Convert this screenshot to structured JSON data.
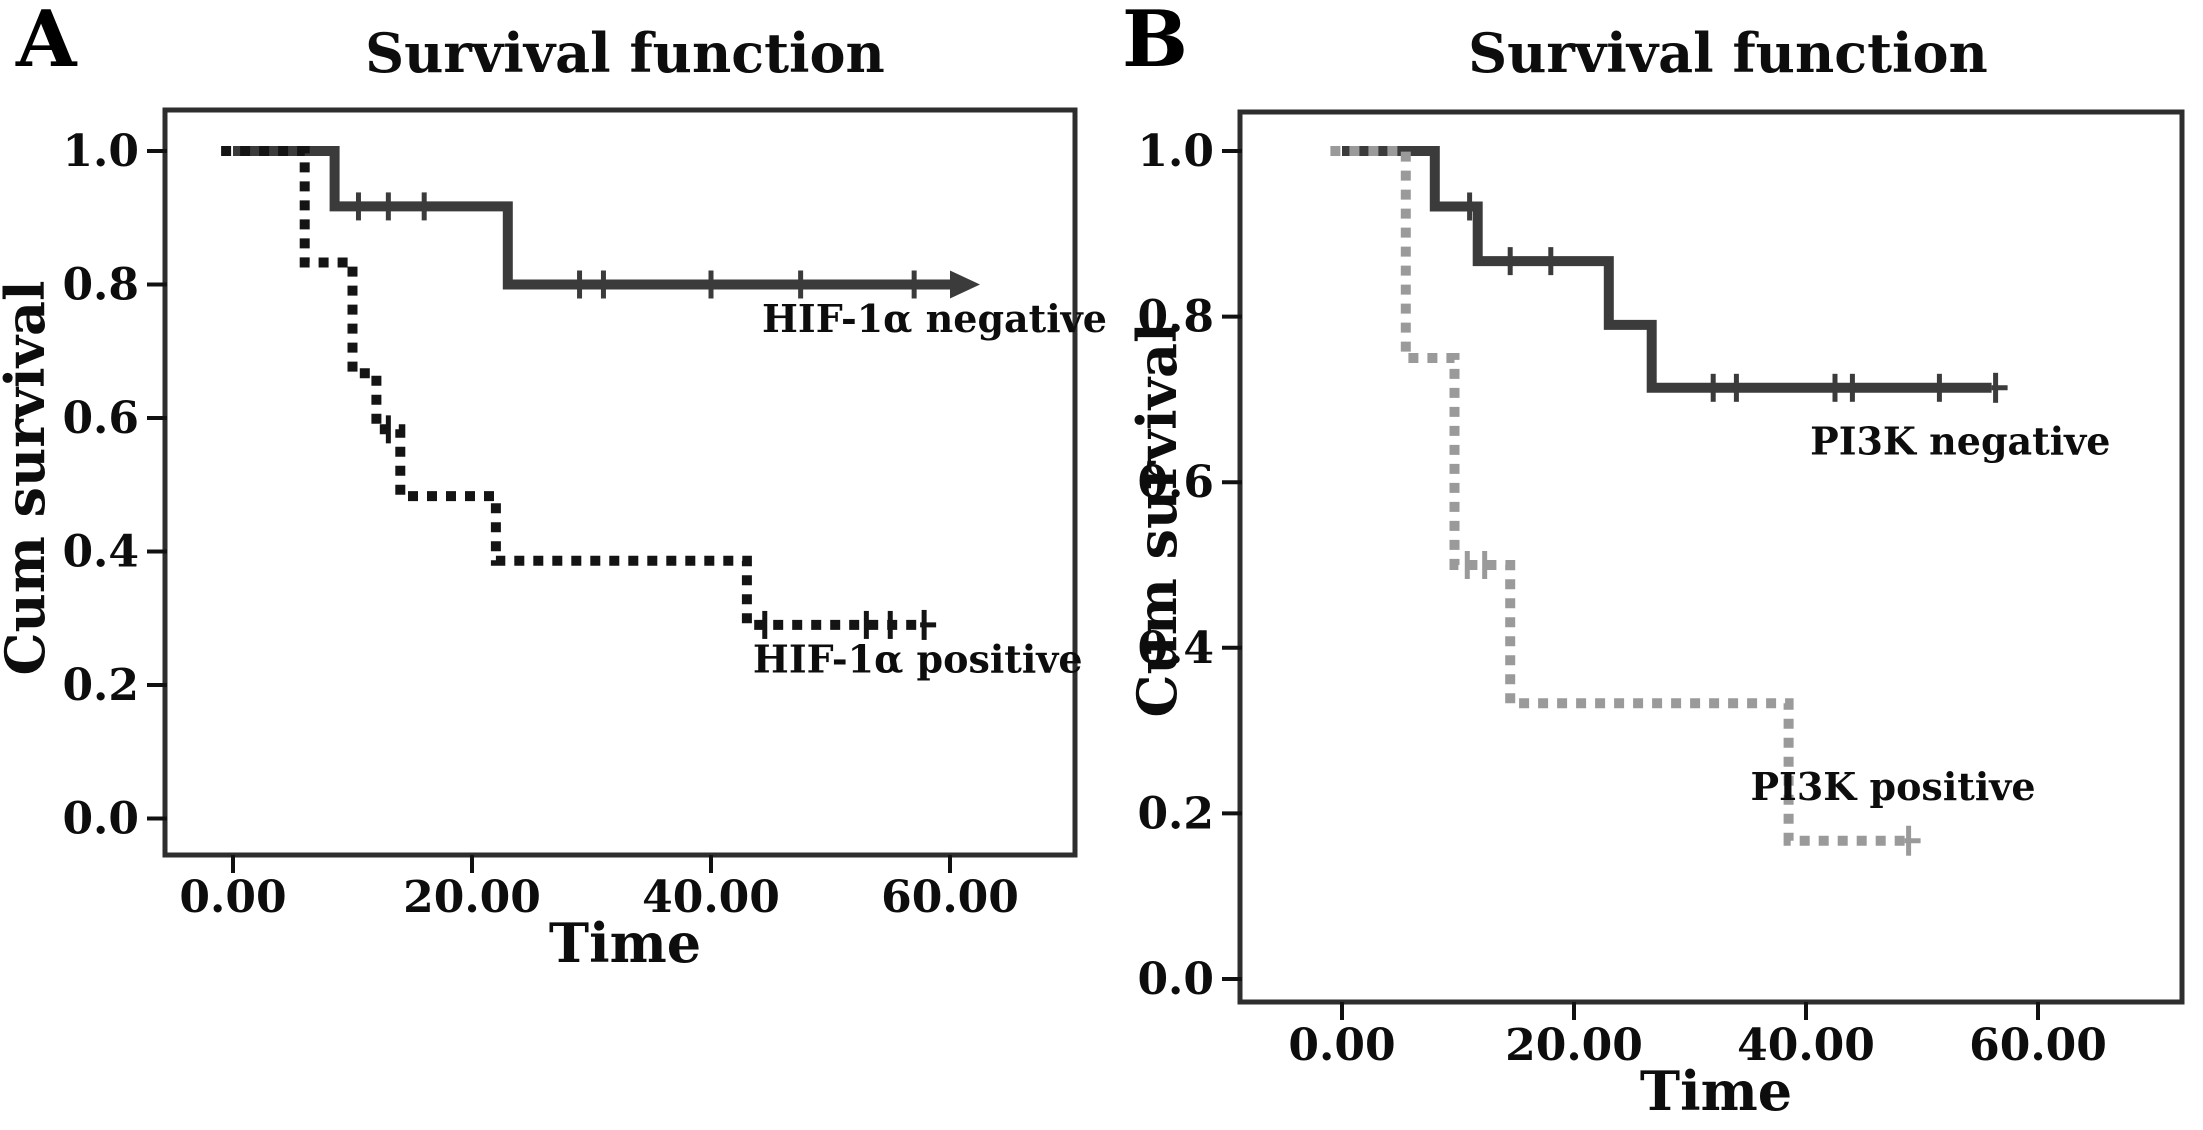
{
  "chart_data": [
    {
      "type": "line",
      "subtype": "kaplan-meier-step",
      "panel_letter": "A",
      "title": "Survival function",
      "xlabel": "Time",
      "ylabel": "Cum survival",
      "grid": false,
      "legend_position": "inline-annotations",
      "xlim": [
        -4,
        70.5
      ],
      "ylim": [
        -0.055,
        1.06
      ],
      "x_ticks": {
        "values": [
          0,
          20,
          40,
          60
        ],
        "labels": [
          "0.00",
          "20.00",
          "40.00",
          "60.00"
        ]
      },
      "y_ticks": {
        "values": [
          1.0,
          0.8,
          0.6,
          0.4,
          0.2,
          0.0
        ],
        "labels": [
          "1.0",
          "0.8",
          "0.6",
          "0.4",
          "0.2",
          "0.0"
        ]
      },
      "series": [
        {
          "name": "HIF-1α negative",
          "line_style": "solid",
          "color": "#3b3b3b",
          "steps": [
            [
              0,
              1.0
            ],
            [
              8.5,
              1.0
            ],
            [
              8.5,
              0.917
            ],
            [
              23,
              0.917
            ],
            [
              23,
              0.8
            ],
            [
              60,
              0.8
            ]
          ],
          "censor_marks": [
            [
              10.5,
              0.917
            ],
            [
              13,
              0.917
            ],
            [
              16,
              0.917
            ],
            [
              29,
              0.8
            ],
            [
              31,
              0.8
            ],
            [
              40,
              0.8
            ],
            [
              47.5,
              0.8
            ],
            [
              57,
              0.8
            ]
          ],
          "end_marker": "arrow",
          "annotation": {
            "text": "HIF-1α negative",
            "x": 58.7,
            "y": 0.748
          }
        },
        {
          "name": "HIF-1α positive",
          "line_style": "dotted",
          "color": "#141414",
          "steps": [
            [
              -1,
              1.0
            ],
            [
              6,
              1.0
            ],
            [
              6,
              0.833
            ],
            [
              10,
              0.833
            ],
            [
              10,
              0.667
            ],
            [
              12,
              0.667
            ],
            [
              12,
              0.583
            ],
            [
              14,
              0.583
            ],
            [
              14,
              0.483
            ],
            [
              22,
              0.483
            ],
            [
              22,
              0.386
            ],
            [
              43,
              0.386
            ],
            [
              43,
              0.29
            ],
            [
              57.5,
              0.29
            ]
          ],
          "censor_marks": [
            [
              13,
              0.583
            ],
            [
              44.5,
              0.29
            ],
            [
              53,
              0.29
            ],
            [
              55,
              0.29
            ]
          ],
          "end_marker": "plus",
          "annotation": {
            "text": "HIF-1α positive",
            "x": 57.3,
            "y": 0.238
          }
        }
      ]
    },
    {
      "type": "line",
      "subtype": "kaplan-meier-step",
      "panel_letter": "B",
      "title": "Survival function",
      "xlabel": "Time",
      "ylabel": "Cum survival",
      "grid": false,
      "legend_position": "inline-annotations",
      "xlim": [
        -8.8,
        72.4
      ],
      "ylim": [
        -0.028,
        1.047
      ],
      "x_ticks": {
        "values": [
          0,
          20,
          40,
          60
        ],
        "labels": [
          "0.00",
          "20.00",
          "40.00",
          "60.00"
        ]
      },
      "y_ticks": {
        "values": [
          1.0,
          0.8,
          0.6,
          0.4,
          0.2,
          0.0
        ],
        "labels": [
          "1.0",
          "0.8",
          "0.6",
          "0.4",
          "0.2",
          "0.0"
        ]
      },
      "series": [
        {
          "name": "PI3K negative",
          "line_style": "solid",
          "color": "#3b3b3b",
          "steps": [
            [
              0,
              1.0
            ],
            [
              8,
              1.0
            ],
            [
              8,
              0.933
            ],
            [
              11.7,
              0.933
            ],
            [
              11.7,
              0.867
            ],
            [
              23,
              0.867
            ],
            [
              23,
              0.79
            ],
            [
              26.7,
              0.79
            ],
            [
              26.7,
              0.714
            ],
            [
              56,
              0.714
            ]
          ],
          "censor_marks": [
            [
              11,
              0.933
            ],
            [
              14.5,
              0.867
            ],
            [
              18,
              0.867
            ],
            [
              32,
              0.714
            ],
            [
              34,
              0.714
            ],
            [
              42.5,
              0.714
            ],
            [
              44,
              0.714
            ],
            [
              51.5,
              0.714
            ]
          ],
          "end_marker": "plus",
          "annotation": {
            "text": "PI3K negative",
            "x": 53.3,
            "y": 0.649
          }
        },
        {
          "name": "PI3K positive",
          "line_style": "dotted",
          "color": "#9a9a9a",
          "steps": [
            [
              -1,
              1.0
            ],
            [
              5.5,
              1.0
            ],
            [
              5.5,
              0.75
            ],
            [
              9.7,
              0.75
            ],
            [
              9.7,
              0.5
            ],
            [
              14.5,
              0.5
            ],
            [
              14.5,
              0.333
            ],
            [
              38.5,
              0.333
            ],
            [
              38.5,
              0.167
            ],
            [
              48.5,
              0.167
            ]
          ],
          "censor_marks": [
            [
              10.8,
              0.5
            ],
            [
              12.3,
              0.5
            ]
          ],
          "end_marker": "plus",
          "annotation": {
            "text": "PI3K positive",
            "x": 47.5,
            "y": 0.232
          }
        }
      ]
    }
  ]
}
